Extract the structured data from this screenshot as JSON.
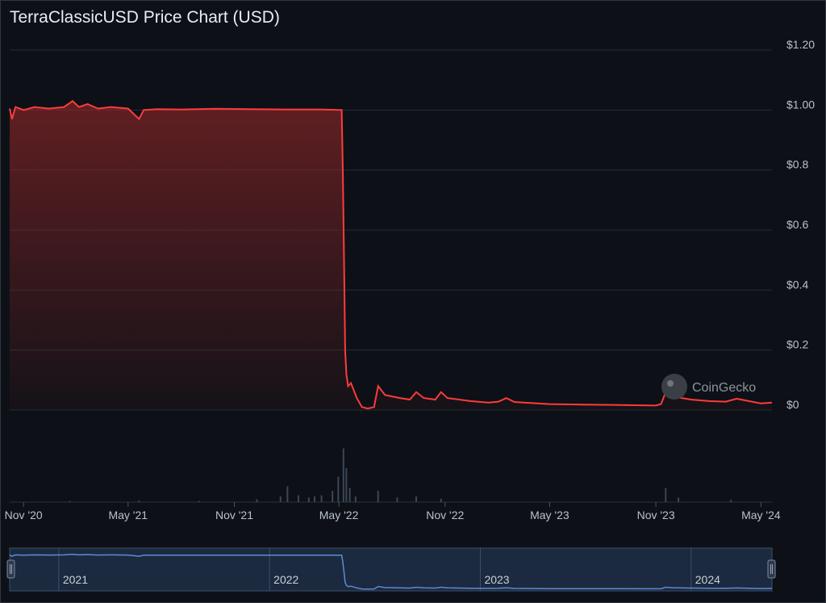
{
  "title": "TerraClassicUSD Price Chart (USD)",
  "watermark": "CoinGecko",
  "chart_data": {
    "type": "area",
    "ylim": [
      0,
      1.2
    ],
    "y_ticks": [
      {
        "value": 1.2,
        "label": "$1.20"
      },
      {
        "value": 1.0,
        "label": "$1.00"
      },
      {
        "value": 0.8,
        "label": "$0.8"
      },
      {
        "value": 0.6,
        "label": "$0.6"
      },
      {
        "value": 0.4,
        "label": "$0.4"
      },
      {
        "value": 0.2,
        "label": "$0.2"
      },
      {
        "value": 0.0,
        "label": "$0"
      }
    ],
    "x_range": [
      "2020-10-08",
      "2024-05-20"
    ],
    "x_ticks": [
      {
        "date": "2020-11-01",
        "label": "Nov '20"
      },
      {
        "date": "2021-05-01",
        "label": "May '21"
      },
      {
        "date": "2021-11-01",
        "label": "Nov '21"
      },
      {
        "date": "2022-05-01",
        "label": "May '22"
      },
      {
        "date": "2022-11-01",
        "label": "Nov '22"
      },
      {
        "date": "2023-05-01",
        "label": "May '23"
      },
      {
        "date": "2023-11-01",
        "label": "Nov '23"
      },
      {
        "date": "2024-05-01",
        "label": "May '24"
      }
    ],
    "navigator_ticks": [
      {
        "date": "2021-01-01",
        "label": "2021"
      },
      {
        "date": "2022-01-01",
        "label": "2022"
      },
      {
        "date": "2023-01-01",
        "label": "2023"
      },
      {
        "date": "2024-01-01",
        "label": "2024"
      }
    ],
    "series": [
      {
        "color": "#ff3b3b",
        "points": [
          [
            "2020-10-08",
            1.005
          ],
          [
            "2020-10-12",
            0.97
          ],
          [
            "2020-10-18",
            1.01
          ],
          [
            "2020-11-01",
            1.0
          ],
          [
            "2020-11-20",
            1.01
          ],
          [
            "2020-12-15",
            1.005
          ],
          [
            "2021-01-10",
            1.01
          ],
          [
            "2021-01-25",
            1.03
          ],
          [
            "2021-02-05",
            1.01
          ],
          [
            "2021-02-20",
            1.02
          ],
          [
            "2021-03-10",
            1.005
          ],
          [
            "2021-04-01",
            1.01
          ],
          [
            "2021-05-01",
            1.005
          ],
          [
            "2021-05-20",
            0.97
          ],
          [
            "2021-05-28",
            1.0
          ],
          [
            "2021-06-20",
            1.003
          ],
          [
            "2021-08-01",
            1.002
          ],
          [
            "2021-10-01",
            1.004
          ],
          [
            "2021-12-01",
            1.003
          ],
          [
            "2022-02-01",
            1.002
          ],
          [
            "2022-04-01",
            1.002
          ],
          [
            "2022-05-06",
            1.0
          ],
          [
            "2022-05-08",
            0.78
          ],
          [
            "2022-05-10",
            0.5
          ],
          [
            "2022-05-12",
            0.2
          ],
          [
            "2022-05-14",
            0.12
          ],
          [
            "2022-05-17",
            0.08
          ],
          [
            "2022-05-22",
            0.09
          ],
          [
            "2022-06-01",
            0.04
          ],
          [
            "2022-06-10",
            0.01
          ],
          [
            "2022-06-20",
            0.005
          ],
          [
            "2022-07-01",
            0.01
          ],
          [
            "2022-07-08",
            0.08
          ],
          [
            "2022-07-20",
            0.05
          ],
          [
            "2022-08-15",
            0.04
          ],
          [
            "2022-09-01",
            0.035
          ],
          [
            "2022-09-12",
            0.06
          ],
          [
            "2022-09-25",
            0.04
          ],
          [
            "2022-10-15",
            0.035
          ],
          [
            "2022-10-25",
            0.06
          ],
          [
            "2022-11-05",
            0.04
          ],
          [
            "2022-12-15",
            0.03
          ],
          [
            "2023-01-15",
            0.025
          ],
          [
            "2023-02-01",
            0.028
          ],
          [
            "2023-02-15",
            0.04
          ],
          [
            "2023-03-01",
            0.027
          ],
          [
            "2023-05-01",
            0.02
          ],
          [
            "2023-07-01",
            0.018
          ],
          [
            "2023-09-01",
            0.017
          ],
          [
            "2023-11-01",
            0.015
          ],
          [
            "2023-11-10",
            0.02
          ],
          [
            "2023-11-18",
            0.06
          ],
          [
            "2023-12-01",
            0.045
          ],
          [
            "2024-01-01",
            0.035
          ],
          [
            "2024-02-01",
            0.03
          ],
          [
            "2024-03-01",
            0.028
          ],
          [
            "2024-03-20",
            0.038
          ],
          [
            "2024-04-10",
            0.03
          ],
          [
            "2024-05-01",
            0.022
          ],
          [
            "2024-05-20",
            0.025
          ]
        ]
      }
    ],
    "volume": [
      [
        "2021-01-20",
        0.02
      ],
      [
        "2021-05-20",
        0.03
      ],
      [
        "2021-09-01",
        0.02
      ],
      [
        "2021-12-10",
        0.05
      ],
      [
        "2022-01-20",
        0.1
      ],
      [
        "2022-02-01",
        0.28
      ],
      [
        "2022-02-20",
        0.12
      ],
      [
        "2022-03-10",
        0.08
      ],
      [
        "2022-03-20",
        0.1
      ],
      [
        "2022-04-01",
        0.12
      ],
      [
        "2022-04-20",
        0.2
      ],
      [
        "2022-04-30",
        0.45
      ],
      [
        "2022-05-09",
        0.95
      ],
      [
        "2022-05-14",
        0.6
      ],
      [
        "2022-05-20",
        0.25
      ],
      [
        "2022-05-30",
        0.1
      ],
      [
        "2022-07-08",
        0.2
      ],
      [
        "2022-08-10",
        0.08
      ],
      [
        "2022-09-12",
        0.1
      ],
      [
        "2022-10-25",
        0.06
      ],
      [
        "2023-11-18",
        0.25
      ],
      [
        "2023-12-10",
        0.08
      ],
      [
        "2024-03-10",
        0.04
      ]
    ]
  }
}
